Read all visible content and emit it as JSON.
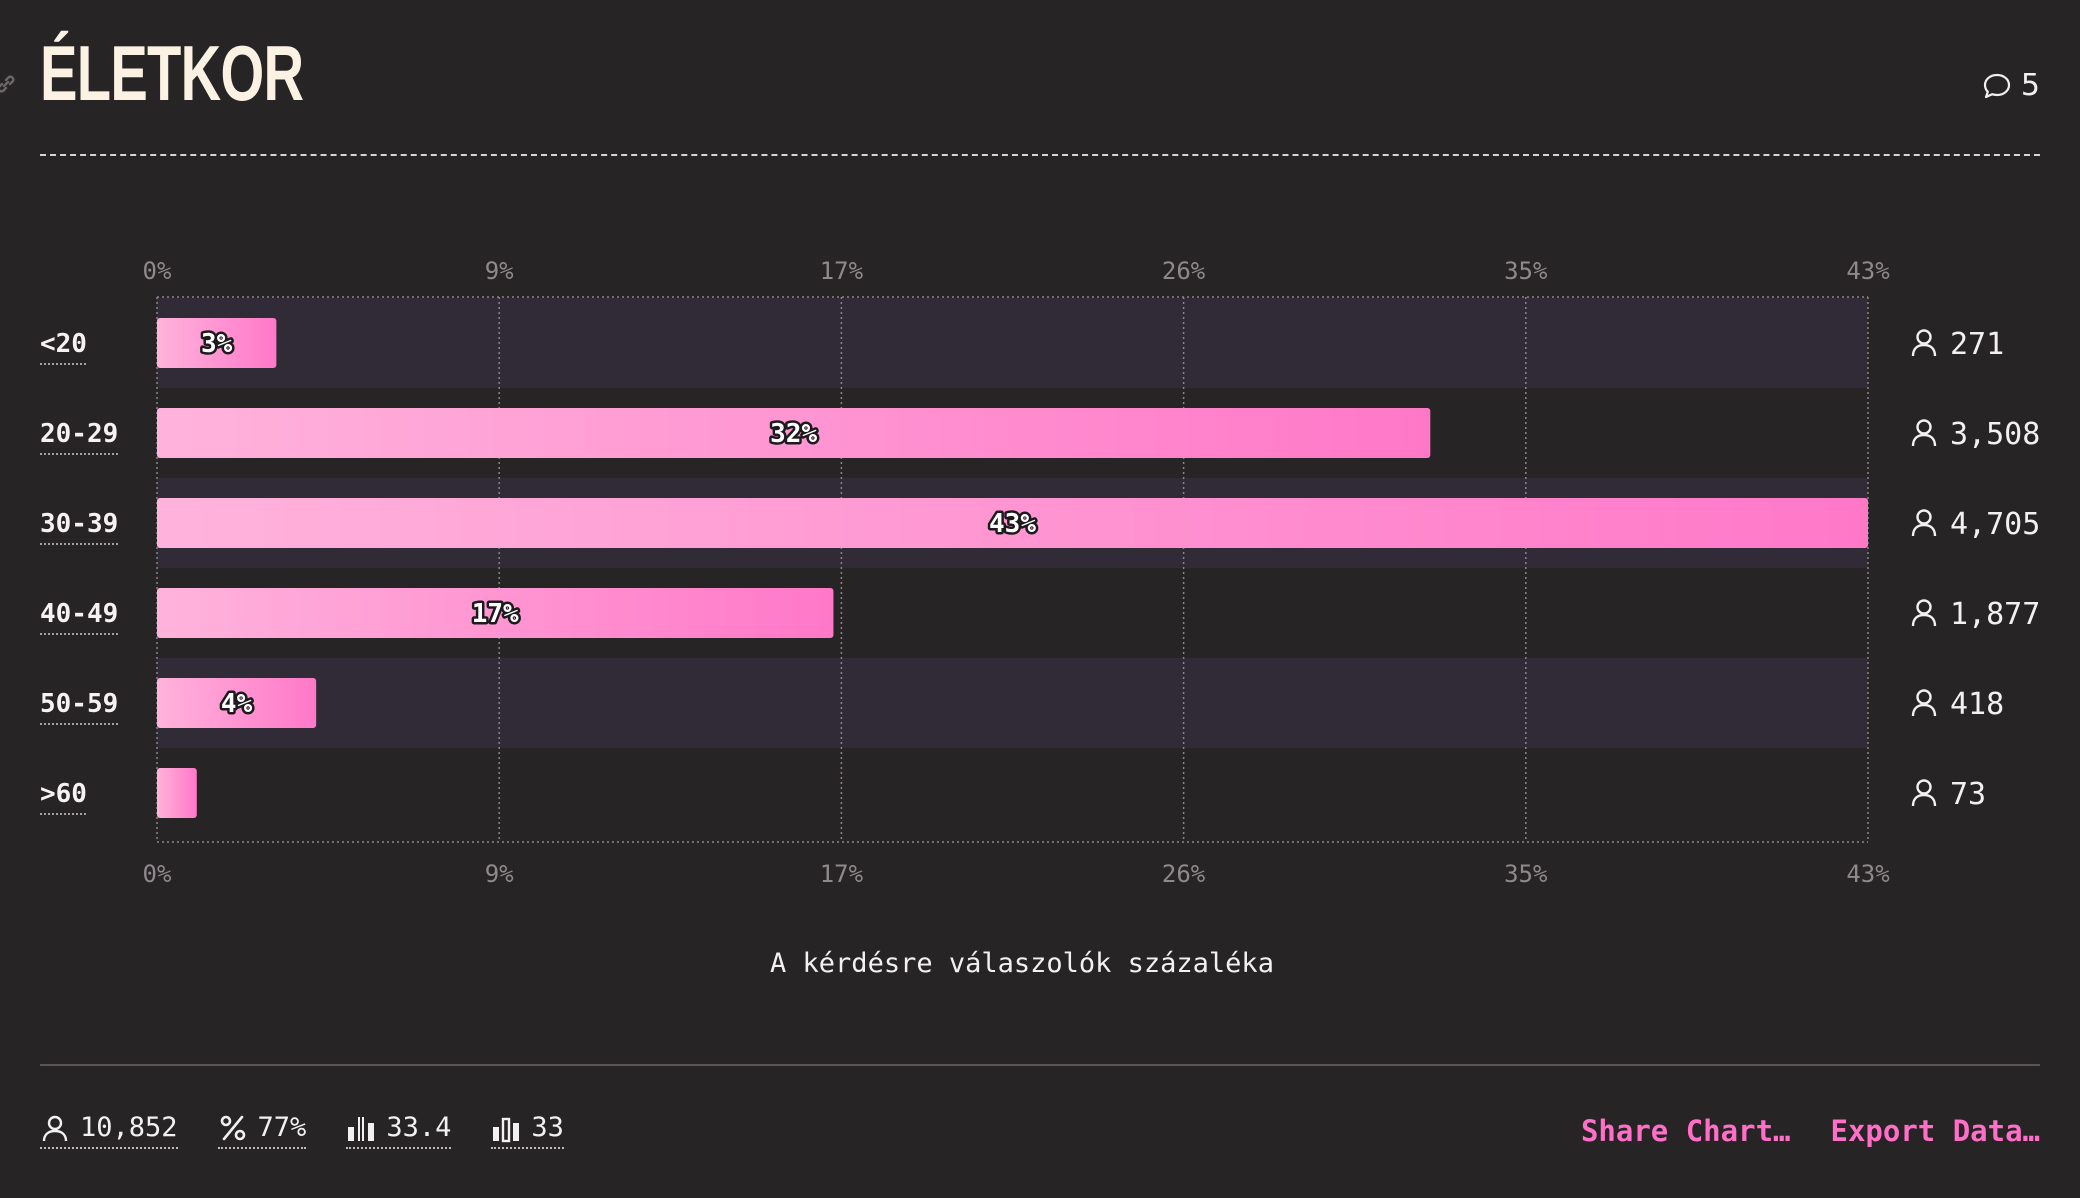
{
  "header": {
    "title": "ÉLETKOR",
    "comments_count": "5"
  },
  "chart_data": {
    "type": "bar",
    "orientation": "horizontal",
    "categories": [
      "<20",
      "20-29",
      "30-39",
      "40-49",
      "50-59",
      ">60"
    ],
    "values": [
      3,
      32,
      43,
      17,
      4,
      1
    ],
    "value_labels": [
      "3%",
      "32%",
      "43%",
      "17%",
      "4%",
      ""
    ],
    "counts": [
      "271",
      "3,508",
      "4,705",
      "1,877",
      "418",
      "73"
    ],
    "ticks": [
      "0%",
      "9%",
      "17%",
      "26%",
      "35%",
      "43%"
    ],
    "xlim": [
      0,
      43
    ],
    "xlabel": "A kérdésre válaszolók százaléka",
    "grid": true,
    "colors": {
      "bar_start": "#ffb3dc",
      "bar_end": "#ff78c8",
      "stripe": "#312b37",
      "grid": "#8a8588",
      "label_outline": "#1d1a1d"
    }
  },
  "footer": {
    "stats": [
      {
        "icon": "person-icon",
        "value": "10,852"
      },
      {
        "icon": "percent-icon",
        "value": "77%"
      },
      {
        "icon": "bar-chart-mean-icon",
        "value": "33.4"
      },
      {
        "icon": "bar-chart-median-icon",
        "value": "33"
      }
    ],
    "share_label": "Share Chart…",
    "export_label": "Export Data…",
    "accent": "#ff6ec7"
  }
}
